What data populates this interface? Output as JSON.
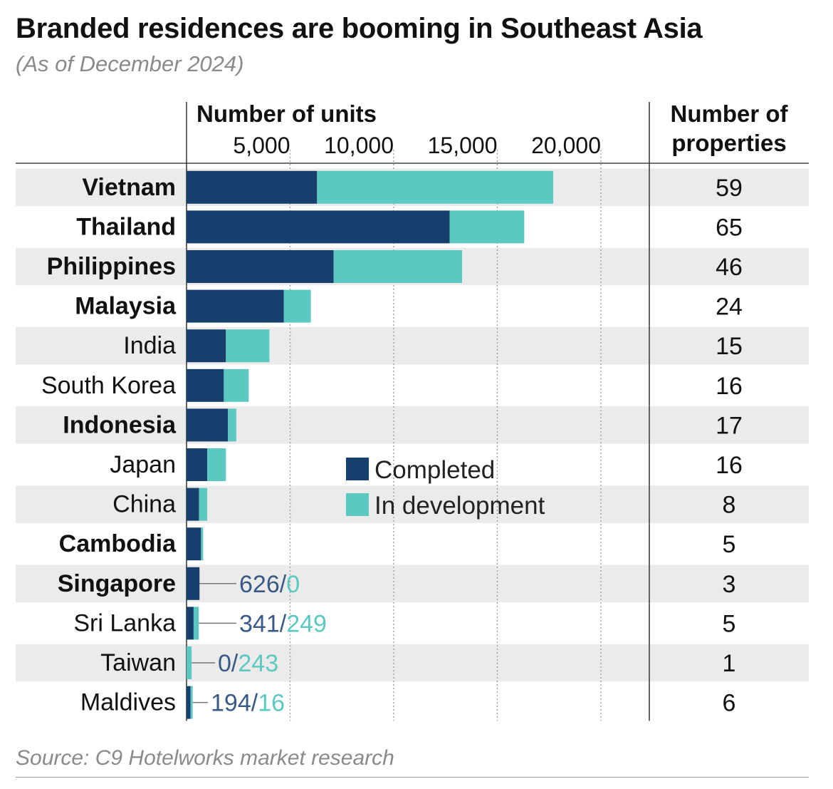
{
  "title": "Branded residences are booming in Southeast Asia",
  "subtitle": "(As of December 2024)",
  "source": "Source: C9 Hotelworks market research",
  "colors": {
    "completed": "#173f6e",
    "in_development": "#5cc8c2",
    "band": "#ebebeb",
    "small_label_completed": "#3a5a86"
  },
  "chart_data": {
    "type": "bar",
    "orientation": "horizontal",
    "stacked": true,
    "xlabel": "Number of units",
    "x_ticks": [
      5000,
      10000,
      15000,
      20000
    ],
    "x_tick_labels": [
      "5,000",
      "10,000",
      "15,000",
      "20,000"
    ],
    "xlim": [
      0,
      22000
    ],
    "grid": "vertical dotted",
    "properties_header": [
      "Number of",
      "properties"
    ],
    "legend": {
      "placement": "center",
      "entries": [
        "Completed",
        "In development"
      ]
    },
    "series": [
      {
        "name": "Completed",
        "values": [
          6300,
          12700,
          7100,
          4700,
          1900,
          1800,
          2000,
          1000,
          600,
          700,
          626,
          341,
          0,
          194
        ]
      },
      {
        "name": "In development",
        "values": [
          11400,
          3600,
          6200,
          1300,
          2100,
          1200,
          400,
          900,
          400,
          100,
          0,
          249,
          243,
          16
        ]
      }
    ],
    "rows": [
      {
        "country": "Vietnam",
        "bold": true,
        "properties": "59"
      },
      {
        "country": "Thailand",
        "bold": true,
        "properties": "65"
      },
      {
        "country": "Philippines",
        "bold": true,
        "properties": "46"
      },
      {
        "country": "Malaysia",
        "bold": true,
        "properties": "24"
      },
      {
        "country": "India",
        "bold": false,
        "properties": "15"
      },
      {
        "country": "South Korea",
        "bold": false,
        "properties": "16"
      },
      {
        "country": "Indonesia",
        "bold": true,
        "properties": "17"
      },
      {
        "country": "Japan",
        "bold": false,
        "properties": "16"
      },
      {
        "country": "China",
        "bold": false,
        "properties": "8"
      },
      {
        "country": "Cambodia",
        "bold": true,
        "properties": "5"
      },
      {
        "country": "Singapore",
        "bold": true,
        "properties": "3"
      },
      {
        "country": "Sri Lanka",
        "bold": false,
        "properties": "5"
      },
      {
        "country": "Taiwan",
        "bold": false,
        "properties": "1"
      },
      {
        "country": "Maldives",
        "bold": false,
        "properties": "6"
      }
    ],
    "small_value_labels": [
      {
        "country": "Singapore",
        "completed": "626",
        "in_development": "0"
      },
      {
        "country": "Sri Lanka",
        "completed": "341",
        "in_development": "249"
      },
      {
        "country": "Taiwan",
        "completed": "0",
        "in_development": "243"
      },
      {
        "country": "Maldives",
        "completed": "194",
        "in_development": "16"
      }
    ]
  }
}
